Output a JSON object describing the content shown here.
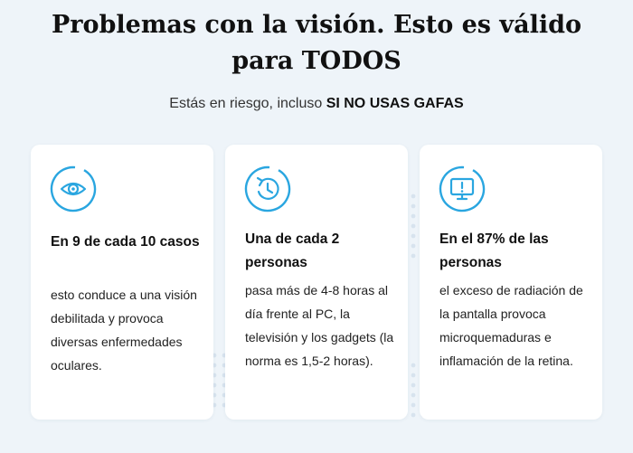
{
  "header": {
    "title": "Problemas con la visión. Esto es válido para TODOS",
    "subtitle_prefix": "Estás en riesgo, incluso ",
    "subtitle_emphasis": "SI NO USAS GAFAS"
  },
  "colors": {
    "accent": "#2aa6e0",
    "background": "#eef4f9",
    "card": "#ffffff"
  },
  "cards": [
    {
      "icon": "eye-icon",
      "title": "En 9 de cada 10 casos",
      "text": "esto conduce a una visión debilitada y provoca diversas enfermedades oculares."
    },
    {
      "icon": "clock-icon",
      "title": "Una de cada 2 personas",
      "text": "pasa más de 4-8 horas al día frente al PC, la televisión y los gadgets (la norma es 1,5-2 horas)."
    },
    {
      "icon": "monitor-warning-icon",
      "title": "En el 87% de las personas",
      "text": "el exceso de radiación de la pantalla provoca microquemaduras e inflamación de la retina."
    }
  ]
}
